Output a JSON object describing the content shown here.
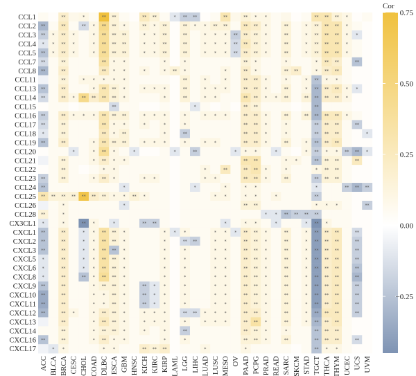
{
  "chart_data": {
    "type": "heatmap",
    "title": "",
    "xlabel": "",
    "ylabel": "",
    "legend_title": "Cor",
    "legend_ticks": [
      0.75,
      0.5,
      0.25,
      0.0,
      -0.25
    ],
    "legend_tick_labels": [
      "0.75",
      "0.50",
      "0.25",
      "0.00",
      "−0.25"
    ],
    "color_range": [
      -0.45,
      0.75
    ],
    "colors": {
      "low": "#7e93b3",
      "mid": "#ffffff",
      "high": "#f0c13e",
      "star": "#555555"
    },
    "x_categories": [
      "ACC",
      "BLCA",
      "BRCA",
      "CESC",
      "CHOL",
      "COAD",
      "DLBC",
      "ESCA",
      "GBM",
      "HNSC",
      "KICH",
      "KIRC",
      "KIRP",
      "LAML",
      "LGG",
      "LIHC",
      "LUAD",
      "LUSC",
      "MESO",
      "OV",
      "PAAD",
      "PCPG",
      "PRAD",
      "READ",
      "SARC",
      "SKCM",
      "STAD",
      "TGCT",
      "THCA",
      "THYM",
      "UCEC",
      "UCS",
      "UVM"
    ],
    "y_categories": [
      "CCL1",
      "CCL2",
      "CCL3",
      "CCL4",
      "CCL5",
      "CCL7",
      "CCL8",
      "CCL11",
      "CCL13",
      "CCL14",
      "CCL15",
      "CCL16",
      "CCL17",
      "CCL18",
      "CCL19",
      "CCL20",
      "CCL21",
      "CCL22",
      "CCL23",
      "CCL24",
      "CCL25",
      "CCL26",
      "CCL28",
      "CX3CL1",
      "CXCL1",
      "CXCL2",
      "CXCL3",
      "CXCL5",
      "CXCL6",
      "CXCL8",
      "CXCL9",
      "CXCL10",
      "CXCL11",
      "CXCL12",
      "CXCL13",
      "CXCL14",
      "CXCL16",
      "CXCL17"
    ],
    "values": [
      [
        0.05,
        0.02,
        0.2,
        0.08,
        0.1,
        0.05,
        0.75,
        0.15,
        0.05,
        0.02,
        0.25,
        0.15,
        0.05,
        -0.1,
        -0.2,
        -0.2,
        0.02,
        0.05,
        0.3,
        0.08,
        0.15,
        0.1,
        0.1,
        0.05,
        0.08,
        0.02,
        0.05,
        0.3,
        0.3,
        0.15,
        0.1,
        0.02,
        0.05
      ],
      [
        -0.3,
        0.05,
        0.25,
        0.05,
        -0.15,
        0.1,
        0.45,
        0.15,
        0.1,
        0.05,
        0.15,
        0.1,
        0.15,
        0.02,
        0.15,
        0.1,
        0.1,
        0.15,
        0.15,
        0.05,
        0.25,
        0.2,
        0.1,
        0.05,
        0.15,
        0.05,
        0.1,
        0.15,
        0.3,
        0.3,
        0.1,
        0.05,
        0.02
      ],
      [
        -0.2,
        0.1,
        0.2,
        0.1,
        0.05,
        0.1,
        0.4,
        0.15,
        0.15,
        0.05,
        0.1,
        0.1,
        0.15,
        0.02,
        0.15,
        0.05,
        0.1,
        0.1,
        0.1,
        -0.2,
        0.2,
        0.15,
        0.1,
        0.05,
        0.15,
        0.05,
        0.1,
        0.15,
        0.3,
        0.3,
        0.1,
        -0.1,
        0.02
      ],
      [
        -0.1,
        0.1,
        0.2,
        0.1,
        0.05,
        0.1,
        0.4,
        0.15,
        0.15,
        0.05,
        0.1,
        0.1,
        0.15,
        0.02,
        0.15,
        0.05,
        0.1,
        0.1,
        0.1,
        -0.15,
        0.25,
        0.15,
        0.1,
        0.05,
        0.15,
        0.05,
        0.1,
        0.15,
        0.3,
        0.3,
        0.1,
        0.05,
        0.02
      ],
      [
        -0.25,
        0.1,
        0.2,
        0.1,
        0.05,
        0.1,
        0.4,
        0.15,
        0.15,
        0.05,
        0.1,
        0.1,
        0.15,
        0.02,
        0.15,
        0.05,
        0.1,
        0.1,
        0.1,
        -0.15,
        0.2,
        0.15,
        0.1,
        0.05,
        0.15,
        0.05,
        0.1,
        0.15,
        0.3,
        0.3,
        0.1,
        0.05,
        0.02
      ],
      [
        -0.15,
        0.05,
        0.15,
        0.05,
        0.05,
        0.05,
        0.35,
        0.1,
        0.1,
        0.05,
        0.05,
        0.05,
        0.1,
        0.02,
        0.1,
        0.05,
        0.05,
        0.05,
        0.05,
        0.05,
        0.15,
        0.1,
        0.05,
        0.05,
        0.1,
        0.05,
        0.05,
        0.1,
        0.25,
        0.2,
        0.05,
        -0.25,
        0.02
      ],
      [
        -0.3,
        0.05,
        0.2,
        0.05,
        0.05,
        0.05,
        0.25,
        0.1,
        0.1,
        0.05,
        0.1,
        0.05,
        0.1,
        0.15,
        0.1,
        0.05,
        0.05,
        0.05,
        0.1,
        0.05,
        0.2,
        0.1,
        0.05,
        0.05,
        0.15,
        0.2,
        0.05,
        0.1,
        0.2,
        0.25,
        0.05,
        0.02,
        0.02
      ],
      [
        -0.05,
        0.05,
        0.15,
        0.05,
        0.1,
        0.1,
        0.1,
        0.1,
        0.1,
        0.05,
        0.05,
        0.05,
        0.05,
        0.02,
        0.15,
        0.05,
        0.1,
        0.05,
        0.1,
        0.05,
        0.2,
        0.2,
        0.1,
        0.05,
        0.1,
        0.05,
        0.1,
        -0.25,
        0.1,
        0.1,
        0.05,
        0.02,
        0.02
      ],
      [
        -0.25,
        0.05,
        0.2,
        0.05,
        0.05,
        0.1,
        0.3,
        0.15,
        0.1,
        0.05,
        0.1,
        0.1,
        0.1,
        0.02,
        0.15,
        0.05,
        0.1,
        0.1,
        0.1,
        0.05,
        0.2,
        0.2,
        0.1,
        0.05,
        0.15,
        0.05,
        0.1,
        -0.3,
        0.2,
        0.25,
        0.1,
        -0.1,
        0.02
      ],
      [
        -0.15,
        0.05,
        0.2,
        0.1,
        0.45,
        0.2,
        0.3,
        0.15,
        0.1,
        0.05,
        0.05,
        0.05,
        0.1,
        0.02,
        0.15,
        0.05,
        0.1,
        0.1,
        0.05,
        0.05,
        0.3,
        0.2,
        0.1,
        0.1,
        0.15,
        0.05,
        0.15,
        -0.3,
        0.2,
        0.2,
        0.1,
        0.02,
        0.02
      ],
      [
        0.02,
        0.05,
        0.05,
        0.02,
        0.05,
        0.05,
        0.05,
        -0.15,
        0.05,
        0.05,
        0.02,
        0.02,
        0.05,
        0.02,
        0.05,
        -0.1,
        0.05,
        0.02,
        0.05,
        0.02,
        0.2,
        0.15,
        0.05,
        0.05,
        0.05,
        0.02,
        0.05,
        -0.3,
        0.05,
        0.05,
        0.05,
        0.02,
        0.02
      ],
      [
        -0.2,
        0.05,
        0.2,
        0.1,
        0.1,
        0.1,
        0.3,
        0.15,
        0.15,
        0.05,
        0.1,
        0.1,
        0.1,
        0.02,
        0.1,
        0.05,
        0.1,
        0.1,
        0.1,
        0.05,
        0.2,
        0.2,
        0.1,
        0.05,
        0.15,
        0.05,
        0.15,
        -0.3,
        0.25,
        0.25,
        0.1,
        0.05,
        0.02
      ],
      [
        -0.15,
        0.05,
        0.15,
        0.05,
        0.05,
        0.05,
        0.3,
        0.1,
        0.1,
        0.05,
        0.1,
        0.05,
        0.1,
        0.02,
        0.1,
        0.05,
        0.05,
        0.05,
        0.05,
        0.05,
        0.2,
        0.2,
        0.1,
        0.05,
        0.1,
        0.05,
        0.05,
        -0.2,
        0.2,
        0.2,
        0.05,
        -0.2,
        0.02
      ],
      [
        -0.1,
        0.05,
        0.15,
        0.05,
        0.05,
        0.05,
        0.25,
        0.1,
        0.15,
        0.05,
        0.05,
        0.05,
        0.1,
        0.02,
        -0.2,
        0.05,
        0.05,
        0.05,
        0.05,
        0.05,
        0.2,
        0.2,
        0.1,
        0.05,
        0.1,
        0.05,
        0.05,
        -0.2,
        0.2,
        0.2,
        0.05,
        0.02,
        -0.1
      ],
      [
        -0.25,
        0.05,
        0.2,
        0.05,
        0.05,
        0.1,
        0.3,
        0.15,
        0.15,
        0.05,
        0.1,
        0.1,
        0.1,
        0.02,
        0.1,
        0.05,
        0.1,
        0.1,
        0.05,
        0.05,
        0.2,
        0.2,
        0.1,
        0.05,
        0.15,
        0.05,
        0.1,
        -0.25,
        0.2,
        0.25,
        0.05,
        0.02,
        0.02
      ],
      [
        0.02,
        0.05,
        0.05,
        -0.1,
        0.05,
        0.1,
        0.4,
        0.1,
        0.05,
        -0.1,
        0.02,
        0.02,
        0.05,
        -0.1,
        0.05,
        -0.2,
        0.05,
        0.05,
        0.05,
        -0.1,
        0.1,
        0.1,
        0.05,
        -0.1,
        0.05,
        0.02,
        0.1,
        -0.2,
        0.1,
        0.1,
        -0.2,
        -0.3,
        -0.1
      ],
      [
        -0.05,
        0.05,
        0.15,
        0.05,
        0.05,
        0.1,
        0.2,
        0.1,
        0.1,
        0.05,
        0.05,
        0.05,
        0.05,
        0.02,
        0.05,
        0.05,
        0.05,
        0.05,
        0.05,
        0.05,
        0.3,
        0.3,
        0.05,
        0.05,
        0.1,
        0.1,
        0.05,
        -0.25,
        0.15,
        0.15,
        0.05,
        0.25,
        0.02
      ],
      [
        0.02,
        0.05,
        0.15,
        0.05,
        0.02,
        0.05,
        0.1,
        0.1,
        0.05,
        0.05,
        0.05,
        0.05,
        0.05,
        0.02,
        0.05,
        0.05,
        0.1,
        0.05,
        0.25,
        0.05,
        0.25,
        0.3,
        0.1,
        0.05,
        0.1,
        0.05,
        0.05,
        0.1,
        0.15,
        0.15,
        0.05,
        0.02,
        0.02
      ],
      [
        -0.2,
        0.05,
        0.15,
        0.05,
        0.05,
        0.1,
        0.2,
        0.1,
        0.05,
        0.05,
        0.1,
        0.1,
        0.05,
        0.02,
        0.05,
        0.05,
        0.1,
        0.1,
        0.05,
        0.05,
        0.25,
        0.25,
        0.1,
        0.05,
        0.15,
        0.05,
        0.05,
        -0.2,
        0.15,
        0.15,
        0.05,
        0.02,
        0.02
      ],
      [
        -0.25,
        0.05,
        0.05,
        0.05,
        0.05,
        0.05,
        0.05,
        0.05,
        -0.1,
        0.05,
        0.05,
        0.05,
        0.05,
        0.02,
        0.05,
        -0.1,
        0.05,
        0.05,
        0.1,
        0.05,
        0.1,
        0.1,
        0.05,
        0.05,
        0.05,
        0.05,
        0.05,
        -0.1,
        0.05,
        0.05,
        -0.2,
        -0.3,
        -0.2
      ],
      [
        0.3,
        0.15,
        0.15,
        0.15,
        0.7,
        0.2,
        0.15,
        0.1,
        0.1,
        0.15,
        0.1,
        0.05,
        0.05,
        0.02,
        0.05,
        0.05,
        0.05,
        0.1,
        0.1,
        0.05,
        0.1,
        0.1,
        0.05,
        0.1,
        0.05,
        0.05,
        0.05,
        -0.2,
        0.05,
        0.05,
        0.05,
        0.02,
        0.02
      ],
      [
        -0.05,
        0.05,
        0.1,
        0.05,
        0.05,
        0.05,
        0.05,
        0.05,
        -0.1,
        0.05,
        0.05,
        0.05,
        0.05,
        0.02,
        0.05,
        0.05,
        0.05,
        0.05,
        0.05,
        0.05,
        0.15,
        0.15,
        0.05,
        0.05,
        0.05,
        0.05,
        0.05,
        0.1,
        0.1,
        0.1,
        0.05,
        0.02,
        -0.2
      ],
      [
        0.15,
        0.05,
        0.1,
        0.05,
        0.05,
        0.05,
        0.05,
        0.05,
        0.05,
        0.05,
        0.05,
        0.05,
        0.05,
        0.02,
        0.05,
        0.05,
        0.05,
        0.05,
        0.05,
        0.05,
        0.05,
        0.05,
        -0.1,
        -0.1,
        -0.25,
        -0.2,
        -0.2,
        -0.2,
        0.05,
        0.05,
        0.05,
        0.02,
        0.02
      ],
      [
        -0.1,
        0.05,
        0.1,
        0.05,
        -0.45,
        0.1,
        0.05,
        -0.1,
        0.05,
        0.05,
        -0.2,
        -0.2,
        0.05,
        0.02,
        0.05,
        0.05,
        0.05,
        0.05,
        -0.1,
        0.05,
        0.1,
        0.1,
        0.05,
        -0.1,
        0.05,
        0.05,
        -0.1,
        -0.45,
        0.1,
        0.05,
        0.05,
        0.02,
        0.02
      ],
      [
        -0.25,
        0.05,
        0.2,
        0.05,
        -0.1,
        0.1,
        0.35,
        0.15,
        0.1,
        0.05,
        0.05,
        0.05,
        0.1,
        -0.1,
        0.1,
        0.05,
        0.05,
        0.1,
        0.1,
        -0.1,
        0.2,
        0.15,
        0.1,
        0.05,
        0.15,
        0.05,
        0.1,
        -0.4,
        0.2,
        0.25,
        0.05,
        -0.15,
        0.02
      ],
      [
        -0.25,
        0.05,
        0.2,
        0.05,
        -0.1,
        0.1,
        0.35,
        0.15,
        0.1,
        0.05,
        0.05,
        0.05,
        0.1,
        0.02,
        -0.15,
        -0.2,
        0.05,
        0.1,
        0.1,
        0.05,
        0.2,
        0.15,
        0.1,
        0.05,
        0.15,
        0.05,
        0.1,
        -0.4,
        0.2,
        0.25,
        0.05,
        -0.2,
        0.02
      ],
      [
        -0.25,
        0.05,
        0.2,
        0.05,
        -0.1,
        0.1,
        0.35,
        -0.25,
        0.1,
        0.05,
        0.05,
        0.05,
        0.1,
        0.02,
        0.1,
        0.05,
        0.05,
        0.1,
        0.1,
        0.05,
        0.2,
        0.15,
        0.1,
        0.05,
        0.15,
        0.05,
        0.1,
        -0.4,
        0.2,
        0.25,
        0.05,
        -0.2,
        0.02
      ],
      [
        -0.1,
        0.05,
        0.2,
        0.05,
        -0.1,
        0.1,
        0.35,
        0.15,
        0.1,
        0.05,
        0.05,
        0.05,
        0.1,
        0.02,
        0.1,
        0.05,
        0.05,
        0.1,
        0.1,
        0.05,
        0.2,
        0.15,
        0.1,
        0.05,
        0.15,
        0.05,
        0.1,
        -0.4,
        0.2,
        0.25,
        0.05,
        -0.2,
        0.02
      ],
      [
        -0.1,
        0.05,
        0.2,
        0.05,
        -0.1,
        0.1,
        0.35,
        0.15,
        0.1,
        0.05,
        0.05,
        0.05,
        0.1,
        0.02,
        0.1,
        0.05,
        0.05,
        0.1,
        0.1,
        0.05,
        0.2,
        0.15,
        0.1,
        0.05,
        0.15,
        0.05,
        0.1,
        -0.4,
        0.2,
        0.25,
        0.05,
        -0.25,
        0.02
      ],
      [
        -0.1,
        0.05,
        0.2,
        0.05,
        -0.25,
        0.1,
        0.4,
        0.15,
        0.1,
        0.05,
        0.05,
        0.05,
        0.1,
        0.02,
        0.1,
        0.05,
        0.05,
        0.1,
        0.1,
        0.05,
        0.2,
        0.15,
        0.1,
        0.05,
        0.15,
        0.05,
        0.1,
        -0.4,
        0.2,
        0.25,
        0.05,
        -0.3,
        0.02
      ],
      [
        -0.25,
        0.05,
        0.2,
        0.05,
        0.05,
        0.1,
        0.15,
        0.15,
        0.1,
        0.05,
        -0.2,
        -0.1,
        0.1,
        0.02,
        0.1,
        0.05,
        0.05,
        0.1,
        0.1,
        0.05,
        0.2,
        0.15,
        0.1,
        0.05,
        0.15,
        0.05,
        0.1,
        -0.4,
        0.2,
        0.25,
        0.05,
        -0.2,
        0.02
      ],
      [
        -0.35,
        0.05,
        0.2,
        0.05,
        0.05,
        0.1,
        0.1,
        0.15,
        0.1,
        0.05,
        -0.2,
        -0.1,
        0.1,
        0.02,
        0.1,
        0.05,
        0.05,
        0.1,
        0.1,
        0.05,
        0.2,
        0.15,
        0.1,
        0.05,
        0.15,
        0.05,
        0.1,
        -0.4,
        0.2,
        0.25,
        0.05,
        -0.2,
        0.02
      ],
      [
        -0.35,
        0.05,
        0.2,
        0.05,
        0.05,
        0.1,
        0.1,
        0.15,
        0.1,
        0.05,
        -0.2,
        -0.1,
        0.1,
        0.02,
        0.1,
        0.05,
        0.05,
        0.1,
        0.1,
        0.05,
        0.2,
        0.15,
        0.1,
        0.05,
        0.15,
        0.05,
        0.1,
        -0.4,
        0.2,
        0.25,
        0.05,
        -0.2,
        0.02
      ],
      [
        -0.3,
        0.05,
        0.2,
        0.1,
        0.05,
        0.1,
        0.2,
        0.15,
        0.1,
        0.05,
        0.1,
        0.1,
        0.1,
        0.02,
        -0.15,
        -0.15,
        0.1,
        0.1,
        0.1,
        0.05,
        0.2,
        0.2,
        0.1,
        0.05,
        0.15,
        0.05,
        0.1,
        -0.35,
        0.25,
        0.25,
        0.05,
        -0.2,
        0.02
      ],
      [
        -0.05,
        0.05,
        0.2,
        0.05,
        0.05,
        0.1,
        0.25,
        0.15,
        0.1,
        0.05,
        0.1,
        0.1,
        0.1,
        0.02,
        0.1,
        0.05,
        0.1,
        0.1,
        0.1,
        0.05,
        0.2,
        0.35,
        0.1,
        0.05,
        0.15,
        0.05,
        0.1,
        -0.3,
        0.2,
        0.25,
        0.05,
        0.02,
        0.02
      ],
      [
        0.05,
        0.05,
        0.15,
        0.05,
        0.05,
        0.1,
        0.15,
        0.15,
        0.1,
        0.05,
        0.1,
        0.05,
        0.1,
        0.02,
        -0.2,
        0.05,
        0.05,
        0.05,
        0.05,
        0.05,
        0.2,
        0.15,
        0.1,
        0.05,
        0.1,
        0.05,
        0.05,
        -0.25,
        0.2,
        0.2,
        0.05,
        0.02,
        0.02
      ],
      [
        -0.25,
        0.05,
        0.15,
        0.05,
        0.05,
        0.1,
        0.2,
        0.1,
        0.1,
        0.05,
        0.05,
        0.05,
        0.1,
        0.02,
        0.1,
        0.05,
        0.05,
        0.05,
        0.05,
        0.05,
        0.15,
        0.15,
        0.1,
        0.05,
        0.15,
        0.05,
        0.05,
        -0.25,
        0.2,
        0.2,
        0.05,
        -0.15,
        0.02
      ],
      [
        -0.05,
        -0.1,
        0.1,
        0.05,
        0.05,
        0.05,
        0.1,
        0.1,
        0.05,
        0.05,
        0.2,
        0.15,
        0.2,
        0.02,
        0.05,
        0.05,
        0.1,
        0.05,
        0.05,
        0.05,
        0.1,
        0.05,
        0.05,
        0.05,
        0.05,
        0.02,
        0.05,
        -0.25,
        0.1,
        0.1,
        0.05,
        0.02,
        0.02
      ]
    ]
  }
}
